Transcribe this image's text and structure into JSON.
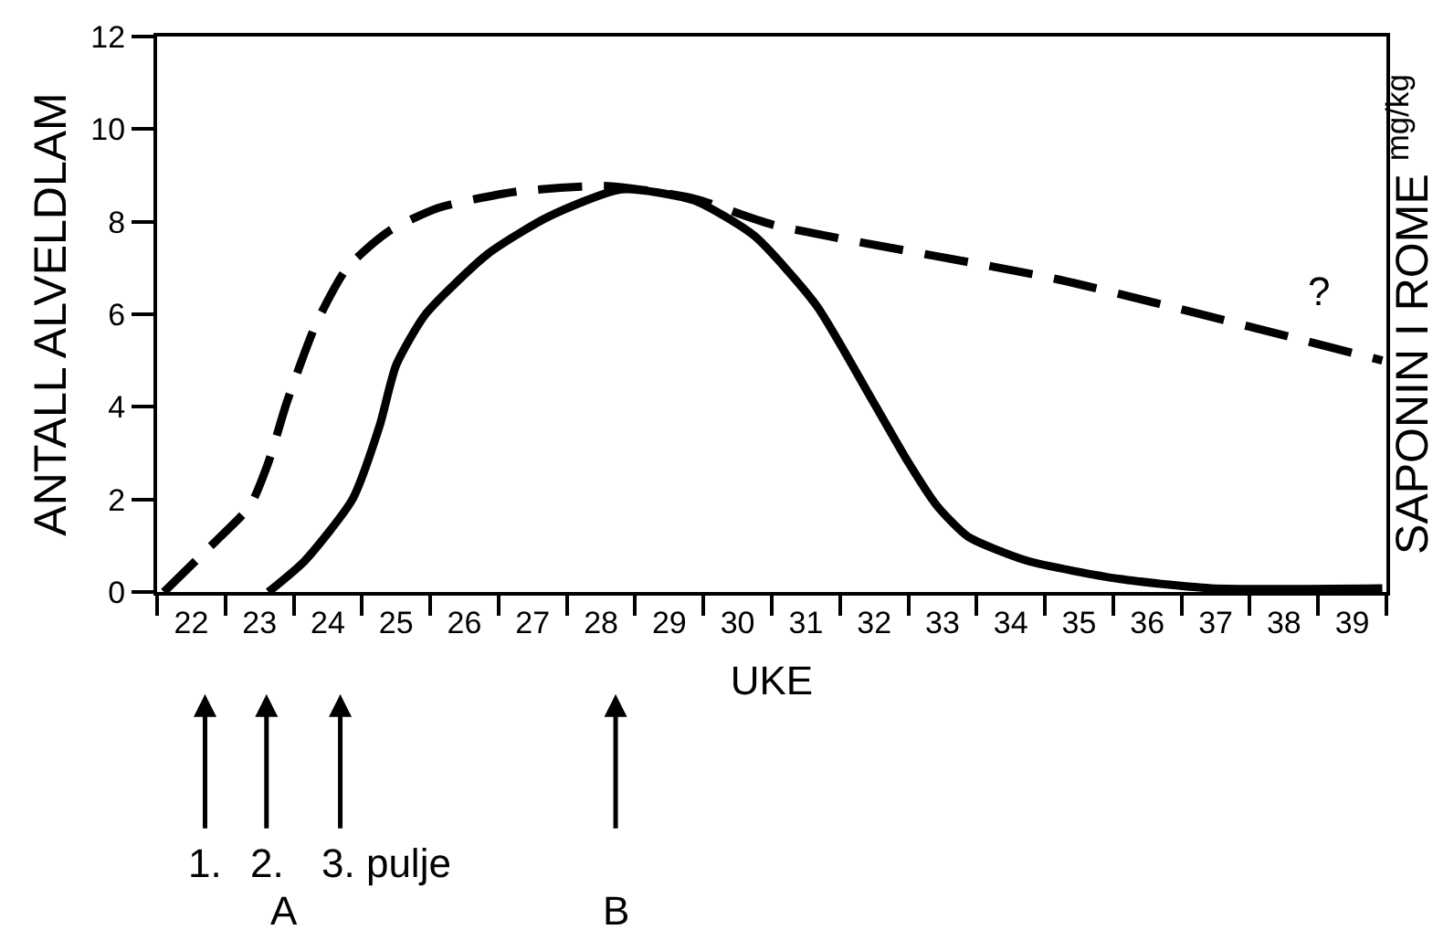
{
  "chart_data": {
    "type": "line",
    "xlabel": "UKE",
    "ylabel": "ANTALL ALVELDLAM",
    "y2label": "SAPONIN I ROME $^{mg/kg}$",
    "xlim": [
      21.5,
      39.5
    ],
    "ylim": [
      0,
      12
    ],
    "yticks": [
      0,
      2,
      4,
      6,
      8,
      10,
      12
    ],
    "xticks": [
      {
        "value": 21.5,
        "label": null
      },
      22,
      {
        "value": 22.5,
        "label": null
      },
      23,
      {
        "value": 23.5,
        "label": null
      },
      24,
      {
        "value": 24.5,
        "label": null
      },
      25,
      {
        "value": 25.5,
        "label": null
      },
      26,
      {
        "value": 26.5,
        "label": null
      },
      27,
      {
        "value": 27.5,
        "label": null
      },
      28,
      {
        "value": 28.5,
        "label": null
      },
      29,
      {
        "value": 29.5,
        "label": null
      },
      30,
      {
        "value": 30.5,
        "label": null
      },
      31,
      {
        "value": 31.5,
        "label": null
      },
      32,
      {
        "value": 32.5,
        "label": null
      },
      33,
      {
        "value": 33.5,
        "label": null
      },
      34,
      {
        "value": 34.5,
        "label": null
      },
      35,
      {
        "value": 35.5,
        "label": null
      },
      36,
      {
        "value": 36.5,
        "label": null
      },
      37,
      {
        "value": 37.5,
        "label": null
      },
      38,
      {
        "value": 38.5,
        "label": null
      },
      39,
      {
        "value": 39.5,
        "label": null
      }
    ],
    "grid": false,
    "marker": "none",
    "series": [
      {
        "color": "#000000",
        "line_style": "solid",
        "x": [
          23.13,
          23.66,
          24.36,
          24.76,
          25.0,
          25.43,
          26.34,
          27.22,
          28.3,
          29.36,
          30.24,
          31.15,
          31.95,
          32.5,
          32.92,
          33.37,
          34.25,
          35.6,
          36.93,
          39.44
        ],
        "values": [
          0,
          0.67,
          2.0,
          3.6,
          4.9,
          6.0,
          7.3,
          8.1,
          8.7,
          8.46,
          7.7,
          6.2,
          4.2,
          2.8,
          1.86,
          1.2,
          0.67,
          0.28,
          0.08,
          0.08
        ]
      },
      {
        "color": "#000000",
        "line_style": "dashed",
        "x": [
          21.6,
          22.2,
          22.86,
          23.13,
          23.4,
          23.83,
          24.28,
          24.9,
          25.62,
          26.77,
          28.1,
          29.36,
          30.5,
          34.7,
          39.44
        ],
        "values": [
          0,
          0.87,
          1.86,
          2.8,
          4.1,
          5.8,
          7.0,
          7.8,
          8.3,
          8.65,
          8.77,
          8.5,
          7.94,
          6.75,
          5.0
        ]
      }
    ],
    "annotations": [
      "?",
      "1.",
      "2.",
      "3. pulje",
      "A",
      "B"
    ]
  }
}
